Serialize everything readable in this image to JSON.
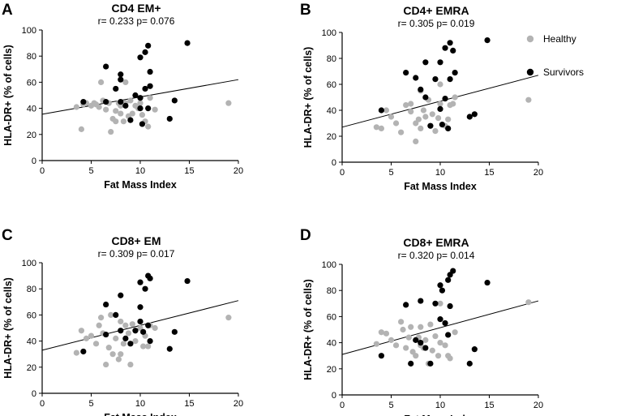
{
  "colors": {
    "healthy": "#b3b3b3",
    "survivors": "#000000",
    "axis": "#000000",
    "fit": "#000000"
  },
  "legend": {
    "items": [
      {
        "label": "Healthy",
        "color": "#b3b3b3"
      },
      {
        "label": "Survivors",
        "color": "#000000"
      }
    ],
    "placement": "right"
  },
  "chart_data": [
    {
      "panel": "A",
      "type": "scatter",
      "title": "CD4 EM+",
      "stats": "r= 0.233 p= 0.076",
      "xlabel": "Fat Mass Index",
      "ylabel": "HLA-DR+ (% of cells)",
      "xlim": [
        0,
        20
      ],
      "ylim": [
        0,
        100
      ],
      "xticks": [
        "0",
        "5",
        "10",
        "15",
        "20"
      ],
      "yticks": [
        "0",
        "20",
        "40",
        "60",
        "80",
        "100"
      ],
      "fit": [
        [
          0,
          35.5
        ],
        [
          20,
          62
        ]
      ],
      "series": [
        {
          "name": "Healthy",
          "points": [
            [
              3.5,
              41
            ],
            [
              4,
              24
            ],
            [
              4.2,
              43
            ],
            [
              4.5,
              44
            ],
            [
              5,
              42
            ],
            [
              5.3,
              44
            ],
            [
              5.5,
              43
            ],
            [
              5.8,
              41
            ],
            [
              6,
              60
            ],
            [
              6.2,
              46
            ],
            [
              6.5,
              39
            ],
            [
              6.8,
              44
            ],
            [
              7,
              22
            ],
            [
              7.2,
              32
            ],
            [
              7.5,
              38
            ],
            [
              7.5,
              30
            ],
            [
              7.8,
              44
            ],
            [
              8,
              42
            ],
            [
              8,
              36
            ],
            [
              8.3,
              30
            ],
            [
              8.5,
              44
            ],
            [
              8.5,
              60
            ],
            [
              8.8,
              34
            ],
            [
              9,
              46
            ],
            [
              9.2,
              36
            ],
            [
              9.5,
              42
            ],
            [
              9.8,
              40
            ],
            [
              10,
              44
            ],
            [
              10.2,
              35
            ],
            [
              10.5,
              30
            ],
            [
              10.8,
              26
            ],
            [
              11,
              48
            ],
            [
              11.5,
              39
            ],
            [
              19,
              44
            ]
          ]
        },
        {
          "name": "Survivors",
          "points": [
            [
              4.2,
              45
            ],
            [
              6.5,
              45
            ],
            [
              6.5,
              72
            ],
            [
              7.5,
              55
            ],
            [
              8,
              62
            ],
            [
              8,
              66
            ],
            [
              8,
              45
            ],
            [
              8.5,
              42
            ],
            [
              9,
              31
            ],
            [
              9.5,
              50
            ],
            [
              10,
              48
            ],
            [
              10,
              40
            ],
            [
              10,
              79
            ],
            [
              10.2,
              28
            ],
            [
              10.5,
              55
            ],
            [
              10.5,
              83
            ],
            [
              10.8,
              88
            ],
            [
              10.8,
              40
            ],
            [
              11,
              68
            ],
            [
              11,
              57
            ],
            [
              13,
              32
            ],
            [
              13.5,
              46
            ],
            [
              14.8,
              90
            ]
          ]
        }
      ]
    },
    {
      "panel": "B",
      "type": "scatter",
      "title": "CD4+ EMRA",
      "stats": "r= 0.305 p= 0.019",
      "xlabel": "Fat Mass Index",
      "ylabel": "HLA-DR+ (% of cells)",
      "xlim": [
        0,
        20
      ],
      "ylim": [
        0,
        100
      ],
      "xticks": [
        "0",
        "5",
        "10",
        "15",
        "20"
      ],
      "yticks": [
        "0",
        "20",
        "40",
        "60",
        "80",
        "100"
      ],
      "fit": [
        [
          0,
          27
        ],
        [
          20,
          67
        ]
      ],
      "series": [
        {
          "name": "Healthy",
          "points": [
            [
              3.5,
              27
            ],
            [
              4,
              26
            ],
            [
              4.5,
              40
            ],
            [
              5,
              35
            ],
            [
              5.5,
              30
            ],
            [
              6,
              23
            ],
            [
              6.5,
              44
            ],
            [
              7,
              45
            ],
            [
              7,
              39
            ],
            [
              7.5,
              16
            ],
            [
              7.5,
              30
            ],
            [
              7.8,
              33
            ],
            [
              8,
              26
            ],
            [
              8,
              55
            ],
            [
              8.3,
              40
            ],
            [
              8.5,
              35
            ],
            [
              8.8,
              48
            ],
            [
              9,
              28
            ],
            [
              9.2,
              37
            ],
            [
              9.5,
              24
            ],
            [
              9.8,
              34
            ],
            [
              10,
              45
            ],
            [
              10,
              60
            ],
            [
              10.5,
              28
            ],
            [
              10.8,
              33
            ],
            [
              11,
              44
            ],
            [
              11.3,
              45
            ],
            [
              11.5,
              50
            ],
            [
              19,
              48
            ]
          ]
        },
        {
          "name": "Survivors",
          "points": [
            [
              4,
              40
            ],
            [
              6.5,
              69
            ],
            [
              7.5,
              65
            ],
            [
              8,
              56
            ],
            [
              8.5,
              77
            ],
            [
              8.5,
              50
            ],
            [
              9,
              28
            ],
            [
              9.5,
              64
            ],
            [
              10,
              41
            ],
            [
              10,
              77
            ],
            [
              10.2,
              29
            ],
            [
              10.5,
              88
            ],
            [
              10.5,
              49
            ],
            [
              10.8,
              26
            ],
            [
              11,
              92
            ],
            [
              11,
              64
            ],
            [
              11.3,
              86
            ],
            [
              11.5,
              69
            ],
            [
              13,
              35
            ],
            [
              13.5,
              37
            ],
            [
              14.8,
              94
            ]
          ]
        }
      ]
    },
    {
      "panel": "C",
      "type": "scatter",
      "title": "CD8+ EM",
      "stats": "r= 0.309 p= 0.017",
      "xlabel": "Fat Mass Index",
      "ylabel": "HLA-DR+ (% of cells)",
      "xlim": [
        0,
        20
      ],
      "ylim": [
        0,
        100
      ],
      "xticks": [
        "0",
        "5",
        "10",
        "15",
        "20"
      ],
      "yticks": [
        "0",
        "20",
        "40",
        "60",
        "80",
        "100"
      ],
      "fit": [
        [
          0,
          33
        ],
        [
          20,
          71
        ]
      ],
      "series": [
        {
          "name": "Healthy",
          "points": [
            [
              3.5,
              31
            ],
            [
              4,
              48
            ],
            [
              4.5,
              42
            ],
            [
              5,
              44
            ],
            [
              5.5,
              38
            ],
            [
              5.8,
              52
            ],
            [
              6,
              58
            ],
            [
              6.2,
              46
            ],
            [
              6.5,
              22
            ],
            [
              6.8,
              35
            ],
            [
              7,
              60
            ],
            [
              7.2,
              30
            ],
            [
              7.5,
              42
            ],
            [
              7.8,
              26
            ],
            [
              8,
              55
            ],
            [
              8,
              30
            ],
            [
              8.3,
              38
            ],
            [
              8.5,
              52
            ],
            [
              8.8,
              46
            ],
            [
              9,
              22
            ],
            [
              9.2,
              53
            ],
            [
              9.5,
              40
            ],
            [
              10,
              50
            ],
            [
              10.3,
              36
            ],
            [
              10.5,
              44
            ],
            [
              10.8,
              36
            ],
            [
              11,
              52
            ],
            [
              11.5,
              50
            ],
            [
              19,
              58
            ]
          ]
        },
        {
          "name": "Survivors",
          "points": [
            [
              4.2,
              32
            ],
            [
              6.5,
              45
            ],
            [
              6.5,
              68
            ],
            [
              7.5,
              60
            ],
            [
              8,
              75
            ],
            [
              8,
              48
            ],
            [
              8.5,
              42
            ],
            [
              9,
              38
            ],
            [
              9.5,
              48
            ],
            [
              10,
              55
            ],
            [
              10,
              66
            ],
            [
              10,
              85
            ],
            [
              10.3,
              47
            ],
            [
              10.5,
              80
            ],
            [
              10.8,
              52
            ],
            [
              10.8,
              90
            ],
            [
              11,
              88
            ],
            [
              11,
              40
            ],
            [
              13,
              34
            ],
            [
              13.5,
              47
            ],
            [
              14.8,
              86
            ]
          ]
        }
      ]
    },
    {
      "panel": "D",
      "type": "scatter",
      "title": "CD8+ EMRA",
      "stats": "r= 0.320 p= 0.014",
      "xlabel": "Fat Mass Index",
      "ylabel": "HLA-DR+ (% of cells)",
      "xlim": [
        0,
        20
      ],
      "ylim": [
        0,
        100
      ],
      "xticks": [
        "0",
        "5",
        "10",
        "15",
        "20"
      ],
      "yticks": [
        "0",
        "20",
        "40",
        "60",
        "80",
        "100"
      ],
      "fit": [
        [
          0,
          31
        ],
        [
          20,
          72
        ]
      ],
      "series": [
        {
          "name": "Healthy",
          "points": [
            [
              3.5,
              39
            ],
            [
              4,
              48
            ],
            [
              4.5,
              47
            ],
            [
              5,
              42
            ],
            [
              5.5,
              38
            ],
            [
              6,
              56
            ],
            [
              6.2,
              50
            ],
            [
              6.5,
              36
            ],
            [
              6.8,
              44
            ],
            [
              7,
              52
            ],
            [
              7.2,
              33
            ],
            [
              7.5,
              30
            ],
            [
              7.8,
              44
            ],
            [
              8,
              38
            ],
            [
              8,
              52
            ],
            [
              8.3,
              36
            ],
            [
              8.5,
              42
            ],
            [
              8.8,
              24
            ],
            [
              9,
              54
            ],
            [
              9.2,
              34
            ],
            [
              9.5,
              45
            ],
            [
              9.8,
              30
            ],
            [
              10,
              40
            ],
            [
              10,
              70
            ],
            [
              10.5,
              38
            ],
            [
              10.8,
              30
            ],
            [
              11,
              28
            ],
            [
              11.5,
              48
            ],
            [
              19,
              71
            ]
          ]
        },
        {
          "name": "Survivors",
          "points": [
            [
              4,
              30
            ],
            [
              6.5,
              69
            ],
            [
              7,
              24
            ],
            [
              7.5,
              42
            ],
            [
              8,
              72
            ],
            [
              8,
              40
            ],
            [
              8.5,
              36
            ],
            [
              9,
              24
            ],
            [
              9.5,
              70
            ],
            [
              10,
              58
            ],
            [
              10,
              84
            ],
            [
              10.2,
              80
            ],
            [
              10.5,
              55
            ],
            [
              10.8,
              88
            ],
            [
              10.8,
              46
            ],
            [
              11,
              92
            ],
            [
              11,
              68
            ],
            [
              11.3,
              95
            ],
            [
              13,
              24
            ],
            [
              13.5,
              35
            ],
            [
              14.8,
              86
            ]
          ]
        }
      ]
    }
  ]
}
